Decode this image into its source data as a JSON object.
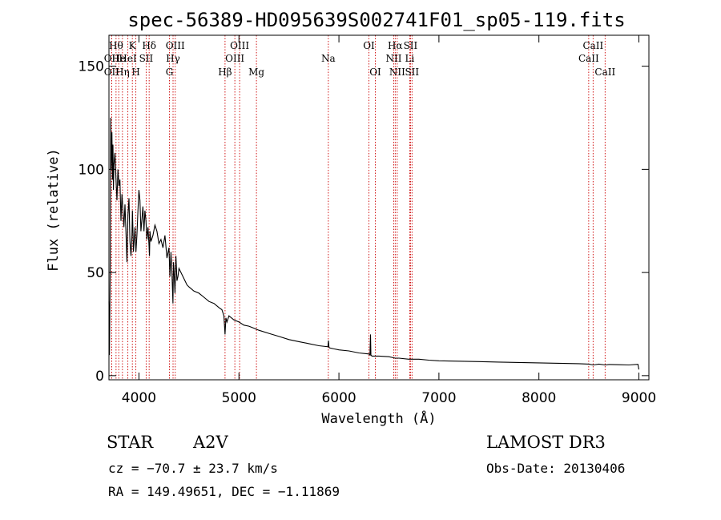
{
  "chart_data": {
    "type": "line",
    "title": "spec-56389-HD095639S002741F01_sp05-119.fits",
    "xlabel": "Wavelength (Å)",
    "ylabel": "Flux (relative)",
    "xlim": [
      3700,
      9100
    ],
    "ylim": [
      -2,
      165
    ],
    "xticks": [
      4000,
      5000,
      6000,
      7000,
      8000,
      9000
    ],
    "yticks": [
      0,
      50,
      100,
      150
    ],
    "series": [
      {
        "name": "flux",
        "x": [
          3700,
          3705,
          3712,
          3718,
          3722,
          3730,
          3735,
          3740,
          3745,
          3750,
          3760,
          3770,
          3780,
          3790,
          3800,
          3810,
          3820,
          3830,
          3840,
          3850,
          3860,
          3870,
          3880,
          3890,
          3900,
          3910,
          3920,
          3930,
          3935,
          3945,
          3960,
          3970,
          3980,
          3990,
          4000,
          4010,
          4020,
          4030,
          4040,
          4050,
          4060,
          4070,
          4080,
          4090,
          4100,
          4105,
          4110,
          4120,
          4140,
          4160,
          4180,
          4200,
          4220,
          4240,
          4260,
          4280,
          4300,
          4310,
          4320,
          4330,
          4340,
          4345,
          4350,
          4360,
          4370,
          4380,
          4390,
          4400,
          4420,
          4440,
          4460,
          4480,
          4500,
          4550,
          4600,
          4650,
          4700,
          4750,
          4800,
          4830,
          4850,
          4861,
          4870,
          4880,
          4900,
          4950,
          5000,
          5050,
          5100,
          5150,
          5200,
          5300,
          5400,
          5500,
          5600,
          5700,
          5800,
          5890,
          5895,
          5900,
          5905,
          5950,
          6000,
          6100,
          6200,
          6300,
          6310,
          6316,
          6320,
          6330,
          6400,
          6500,
          6563,
          6600,
          6700,
          6800,
          6900,
          7000,
          7200,
          7400,
          7600,
          7800,
          8000,
          8200,
          8400,
          8500,
          8542,
          8600,
          8662,
          8700,
          8800,
          8900,
          8990,
          9000
        ],
        "y": [
          36,
          10,
          50,
          125,
          100,
          118,
          95,
          112,
          90,
          102,
          108,
          96,
          85,
          100,
          92,
          95,
          75,
          88,
          80,
          72,
          83,
          70,
          55,
          78,
          86,
          65,
          58,
          68,
          80,
          60,
          72,
          60,
          68,
          80,
          90,
          85,
          70,
          76,
          82,
          70,
          80,
          75,
          66,
          72,
          64,
          58,
          70,
          65,
          68,
          73,
          70,
          64,
          66,
          62,
          68,
          57,
          62,
          48,
          60,
          50,
          35,
          55,
          52,
          40,
          58,
          46,
          48,
          52,
          50,
          48,
          46,
          44,
          43,
          41,
          40,
          38,
          36,
          35,
          33,
          32,
          29,
          20,
          28,
          26,
          29,
          27,
          26,
          24.5,
          24,
          23,
          22,
          20.5,
          19,
          17.5,
          16.5,
          15.5,
          14.5,
          14,
          17,
          14,
          13.5,
          13,
          12.5,
          12,
          11,
          10.5,
          10,
          20,
          10,
          9.5,
          9.5,
          9.2,
          8.5,
          8.5,
          8,
          8,
          7.5,
          7.2,
          7,
          6.8,
          6.6,
          6.4,
          6.2,
          6,
          5.8,
          5.6,
          5.2,
          5.6,
          5.2,
          5.4,
          5.3,
          5.2,
          5.5,
          3
        ]
      }
    ],
    "lines": [
      {
        "wavelength": 3727,
        "label": "OII",
        "row": 1
      },
      {
        "wavelength": 3727,
        "label": "OII",
        "row": 2
      },
      {
        "wavelength": 3771,
        "label": "Hθ",
        "row": 0
      },
      {
        "wavelength": 3798,
        "label": "He",
        "row": 1
      },
      {
        "wavelength": 3835,
        "label": "Hη",
        "row": 2
      },
      {
        "wavelength": 3889,
        "label": "HeI",
        "row": 1
      },
      {
        "wavelength": 3934,
        "label": "K",
        "row": 0
      },
      {
        "wavelength": 3969,
        "label": "H",
        "row": 2
      },
      {
        "wavelength": 4072,
        "label": "SII",
        "row": 1
      },
      {
        "wavelength": 4102,
        "label": "Hδ",
        "row": 0
      },
      {
        "wavelength": 4305,
        "label": "G",
        "row": 2
      },
      {
        "wavelength": 4341,
        "label": "Hγ",
        "row": 1
      },
      {
        "wavelength": 4363,
        "label": "OIII",
        "row": 0
      },
      {
        "wavelength": 4861,
        "label": "Hβ",
        "row": 2
      },
      {
        "wavelength": 4959,
        "label": "OIII",
        "row": 1
      },
      {
        "wavelength": 5007,
        "label": "OIII",
        "row": 0
      },
      {
        "wavelength": 5175,
        "label": "Mg",
        "row": 2
      },
      {
        "wavelength": 5894,
        "label": "Na",
        "row": 1
      },
      {
        "wavelength": 6300,
        "label": "OI",
        "row": 0
      },
      {
        "wavelength": 6364,
        "label": "OI",
        "row": 2
      },
      {
        "wavelength": 6548,
        "label": "NII",
        "row": 1
      },
      {
        "wavelength": 6563,
        "label": "Hα",
        "row": 0
      },
      {
        "wavelength": 6583,
        "label": "NII",
        "row": 2
      },
      {
        "wavelength": 6708,
        "label": "Li",
        "row": 1
      },
      {
        "wavelength": 6716,
        "label": "SII",
        "row": 0
      },
      {
        "wavelength": 6731,
        "label": "SII",
        "row": 2
      },
      {
        "wavelength": 8498,
        "label": "CaII",
        "row": 1
      },
      {
        "wavelength": 8542,
        "label": "CaII",
        "row": 0
      },
      {
        "wavelength": 8662,
        "label": "CaII",
        "row": 2
      }
    ],
    "colors": {
      "line_marker": "#cc0000",
      "spectrum": "#000000"
    }
  },
  "info": {
    "object_class": "STAR",
    "subclass": "A2V",
    "survey": "LAMOST DR3",
    "redshift": "cz = −70.7 ± 23.7 km/s",
    "obs_date": "Obs-Date: 20130406",
    "coords": "RA = 149.49651, DEC =  −1.11869"
  }
}
